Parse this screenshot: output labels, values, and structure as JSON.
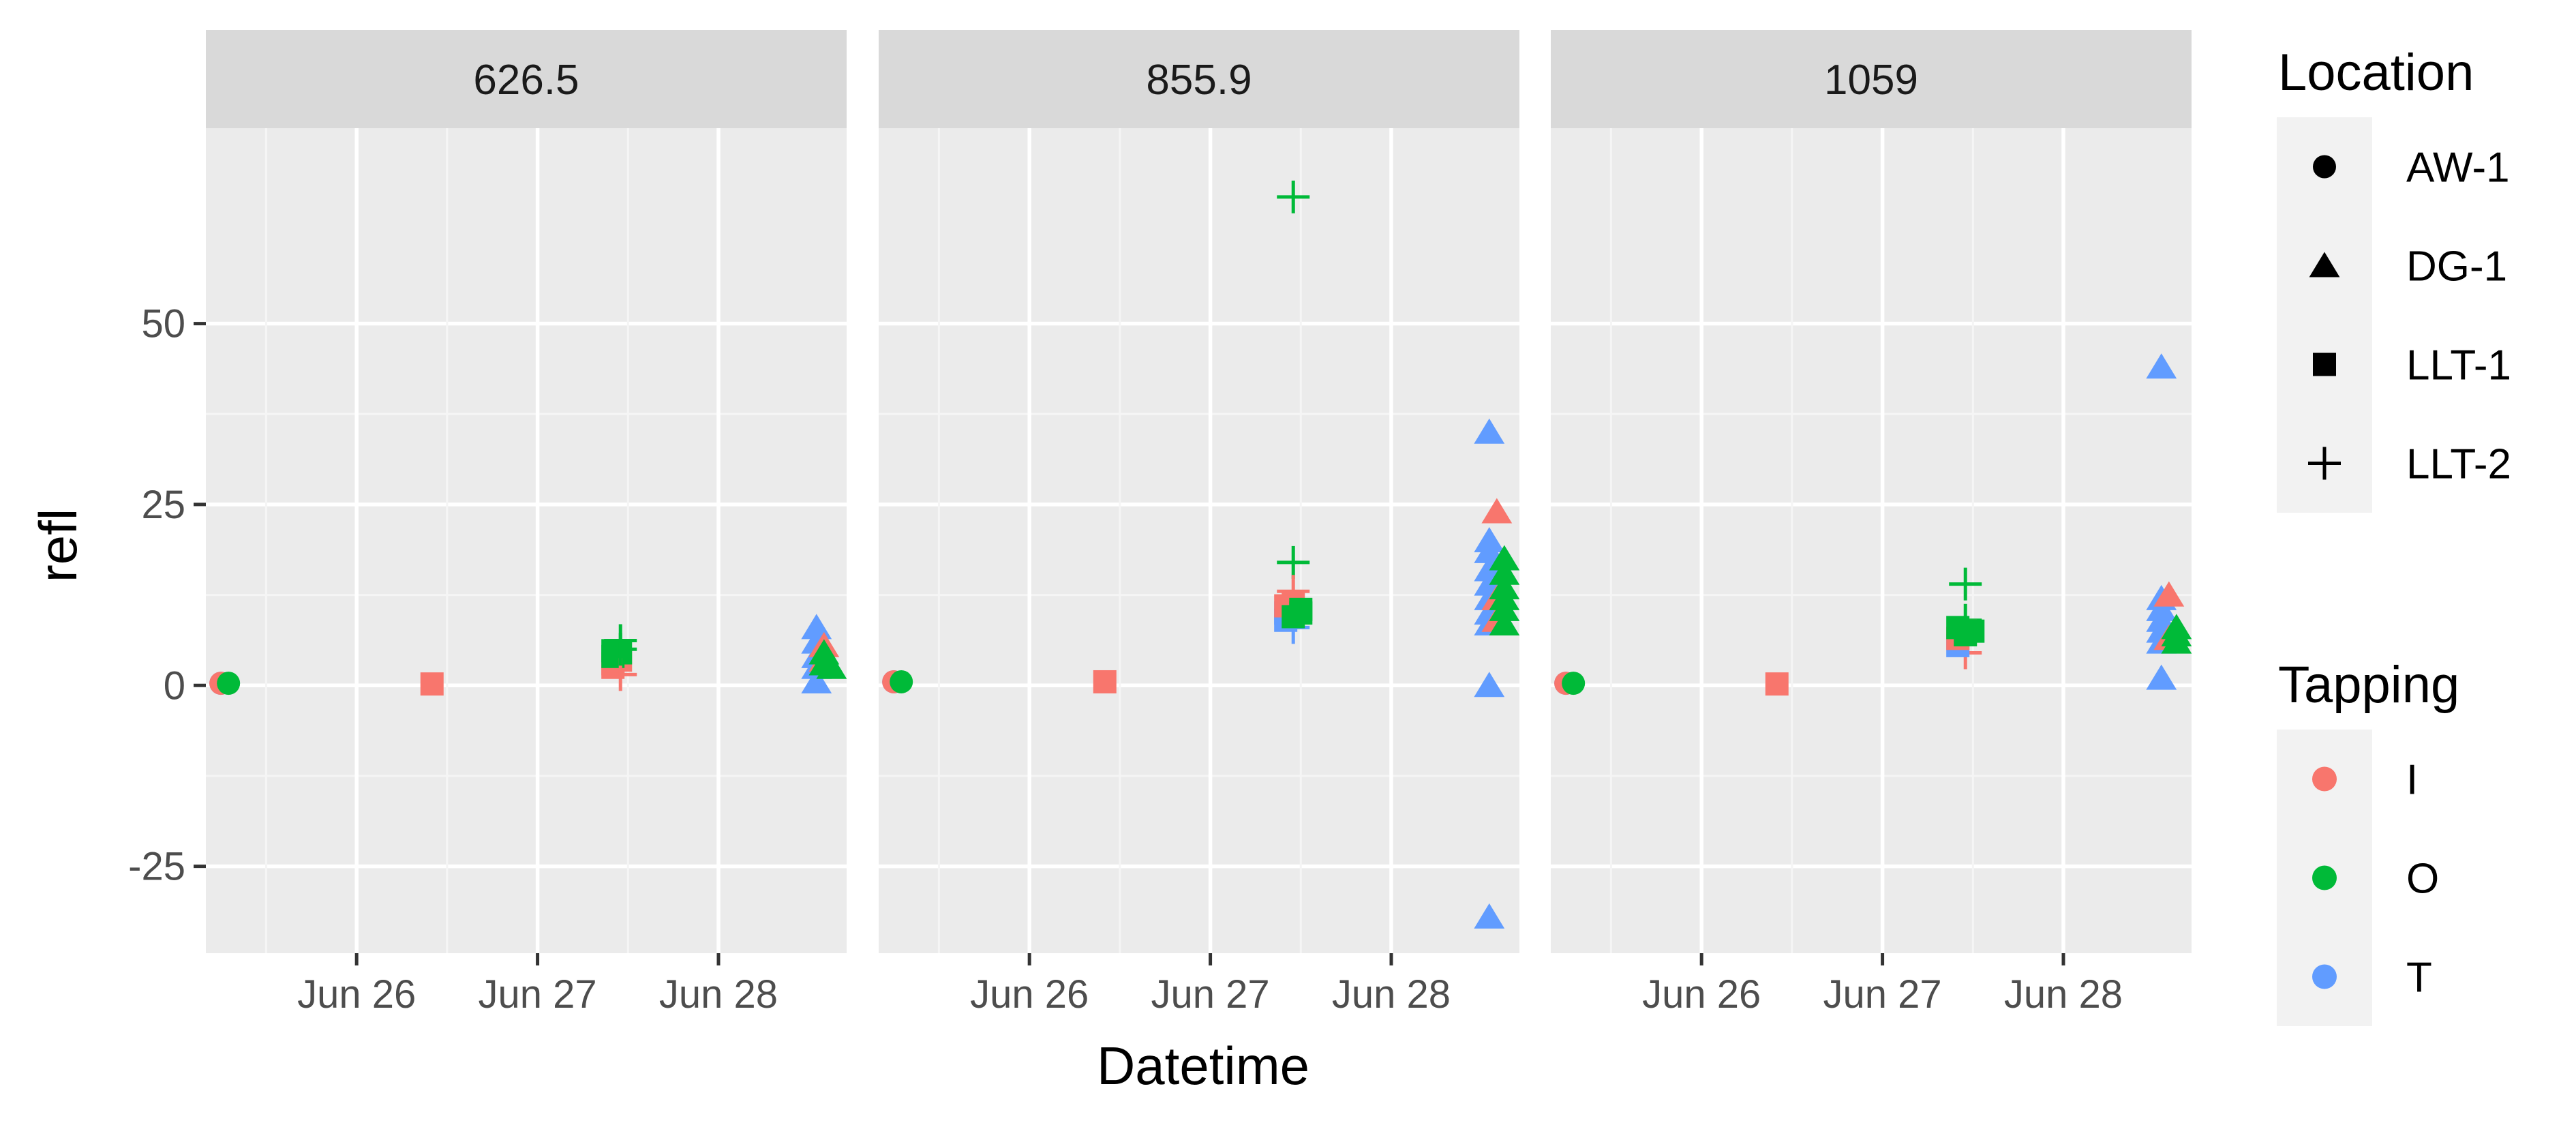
{
  "chart_data": {
    "type": "scatter",
    "facets": [
      "626.5",
      "855.9",
      "1059"
    ],
    "xlabel": "Datetime",
    "ylabel": "refl",
    "x_ticks": [
      "Jun 26",
      "Jun 27",
      "Jun 28"
    ],
    "x_range": [
      "2023-06-25T04:00",
      "2023-06-28T17:00"
    ],
    "y_ticks": [
      -25,
      0,
      25,
      50
    ],
    "ylim": [
      -37,
      77
    ],
    "grid": true,
    "legend_position": "right",
    "legends": {
      "shape": {
        "title": "Location",
        "items": [
          {
            "label": "AW-1",
            "shape": "circle"
          },
          {
            "label": "DG-1",
            "shape": "triangle"
          },
          {
            "label": "LLT-1",
            "shape": "square"
          },
          {
            "label": "LLT-2",
            "shape": "plus"
          }
        ]
      },
      "color": {
        "title": "Tapping",
        "items": [
          {
            "label": "I",
            "color": "#F8766D"
          },
          {
            "label": "O",
            "color": "#00BA38"
          },
          {
            "label": "T",
            "color": "#619CFF"
          }
        ]
      }
    },
    "panels": [
      {
        "facet": "626.5",
        "points": [
          {
            "x": "2023-06-25T06:00",
            "y": 0.3,
            "location": "AW-1",
            "tapping": "T"
          },
          {
            "x": "2023-06-25T06:00",
            "y": 0.3,
            "location": "AW-1",
            "tapping": "I"
          },
          {
            "x": "2023-06-25T07:00",
            "y": 0.3,
            "location": "AW-1",
            "tapping": "O"
          },
          {
            "x": "2023-06-26T10:00",
            "y": 0.2,
            "location": "LLT-1",
            "tapping": "I"
          },
          {
            "x": "2023-06-27T10:00",
            "y": 2.5,
            "location": "LLT-1",
            "tapping": "I"
          },
          {
            "x": "2023-06-27T10:00",
            "y": 3.0,
            "location": "LLT-1",
            "tapping": "I"
          },
          {
            "x": "2023-06-27T11:00",
            "y": 3.5,
            "location": "LLT-1",
            "tapping": "I"
          },
          {
            "x": "2023-06-27T10:00",
            "y": 4.0,
            "location": "LLT-1",
            "tapping": "O"
          },
          {
            "x": "2023-06-27T10:00",
            "y": 4.8,
            "location": "LLT-1",
            "tapping": "O"
          },
          {
            "x": "2023-06-27T11:00",
            "y": 4.5,
            "location": "LLT-1",
            "tapping": "O"
          },
          {
            "x": "2023-06-27T11:00",
            "y": 1.5,
            "location": "LLT-2",
            "tapping": "I"
          },
          {
            "x": "2023-06-27T11:00",
            "y": 5.0,
            "location": "LLT-2",
            "tapping": "O"
          },
          {
            "x": "2023-06-27T11:00",
            "y": 6.2,
            "location": "LLT-2",
            "tapping": "O"
          },
          {
            "x": "2023-06-28T13:00",
            "y": 8.0,
            "location": "DG-1",
            "tapping": "T"
          },
          {
            "x": "2023-06-28T13:00",
            "y": 6.0,
            "location": "DG-1",
            "tapping": "T"
          },
          {
            "x": "2023-06-28T13:00",
            "y": 4.0,
            "location": "DG-1",
            "tapping": "T"
          },
          {
            "x": "2023-06-28T13:00",
            "y": 2.5,
            "location": "DG-1",
            "tapping": "T"
          },
          {
            "x": "2023-06-28T13:00",
            "y": 0.5,
            "location": "DG-1",
            "tapping": "T"
          },
          {
            "x": "2023-06-28T14:00",
            "y": 5.5,
            "location": "DG-1",
            "tapping": "I"
          },
          {
            "x": "2023-06-28T14:00",
            "y": 3.5,
            "location": "DG-1",
            "tapping": "I"
          },
          {
            "x": "2023-06-28T14:00",
            "y": 4.5,
            "location": "DG-1",
            "tapping": "O"
          },
          {
            "x": "2023-06-28T14:00",
            "y": 3.0,
            "location": "DG-1",
            "tapping": "O"
          },
          {
            "x": "2023-06-28T15:00",
            "y": 2.5,
            "location": "DG-1",
            "tapping": "O"
          }
        ]
      },
      {
        "facet": "855.9",
        "points": [
          {
            "x": "2023-06-25T06:00",
            "y": 0.5,
            "location": "AW-1",
            "tapping": "T"
          },
          {
            "x": "2023-06-25T06:00",
            "y": 0.5,
            "location": "AW-1",
            "tapping": "I"
          },
          {
            "x": "2023-06-25T07:00",
            "y": 0.5,
            "location": "AW-1",
            "tapping": "O"
          },
          {
            "x": "2023-06-26T10:00",
            "y": 0.5,
            "location": "LLT-1",
            "tapping": "I"
          },
          {
            "x": "2023-06-27T11:00",
            "y": 67.5,
            "location": "LLT-2",
            "tapping": "O"
          },
          {
            "x": "2023-06-27T11:00",
            "y": 17.0,
            "location": "LLT-2",
            "tapping": "O"
          },
          {
            "x": "2023-06-27T11:00",
            "y": 13.0,
            "location": "LLT-2",
            "tapping": "I"
          },
          {
            "x": "2023-06-27T11:00",
            "y": 8.0,
            "location": "LLT-2",
            "tapping": "T"
          },
          {
            "x": "2023-06-27T10:00",
            "y": 9.0,
            "location": "LLT-1",
            "tapping": "T"
          },
          {
            "x": "2023-06-27T10:00",
            "y": 10.0,
            "location": "LLT-1",
            "tapping": "T"
          },
          {
            "x": "2023-06-27T10:00",
            "y": 11.0,
            "location": "LLT-1",
            "tapping": "I"
          },
          {
            "x": "2023-06-27T11:00",
            "y": 11.5,
            "location": "LLT-1",
            "tapping": "I"
          },
          {
            "x": "2023-06-27T11:00",
            "y": 9.5,
            "location": "LLT-1",
            "tapping": "O"
          },
          {
            "x": "2023-06-27T12:00",
            "y": 10.0,
            "location": "LLT-1",
            "tapping": "O"
          },
          {
            "x": "2023-06-27T12:00",
            "y": 10.5,
            "location": "LLT-1",
            "tapping": "O"
          },
          {
            "x": "2023-06-28T13:00",
            "y": 35.0,
            "location": "DG-1",
            "tapping": "T"
          },
          {
            "x": "2023-06-28T13:00",
            "y": 20.0,
            "location": "DG-1",
            "tapping": "T"
          },
          {
            "x": "2023-06-28T13:00",
            "y": 18.5,
            "location": "DG-1",
            "tapping": "T"
          },
          {
            "x": "2023-06-28T13:00",
            "y": 16.0,
            "location": "DG-1",
            "tapping": "T"
          },
          {
            "x": "2023-06-28T13:00",
            "y": 14.0,
            "location": "DG-1",
            "tapping": "T"
          },
          {
            "x": "2023-06-28T13:00",
            "y": 12.0,
            "location": "DG-1",
            "tapping": "T"
          },
          {
            "x": "2023-06-28T13:00",
            "y": 10.0,
            "location": "DG-1",
            "tapping": "T"
          },
          {
            "x": "2023-06-28T13:00",
            "y": 8.5,
            "location": "DG-1",
            "tapping": "T"
          },
          {
            "x": "2023-06-28T13:00",
            "y": 0.0,
            "location": "DG-1",
            "tapping": "T"
          },
          {
            "x": "2023-06-28T13:00",
            "y": -32.0,
            "location": "DG-1",
            "tapping": "T"
          },
          {
            "x": "2023-06-28T14:00",
            "y": 24.0,
            "location": "DG-1",
            "tapping": "I"
          },
          {
            "x": "2023-06-28T14:00",
            "y": 12.0,
            "location": "DG-1",
            "tapping": "I"
          },
          {
            "x": "2023-06-28T14:00",
            "y": 9.0,
            "location": "DG-1",
            "tapping": "I"
          },
          {
            "x": "2023-06-28T15:00",
            "y": 17.5,
            "location": "DG-1",
            "tapping": "O"
          },
          {
            "x": "2023-06-28T15:00",
            "y": 15.5,
            "location": "DG-1",
            "tapping": "O"
          },
          {
            "x": "2023-06-28T15:00",
            "y": 13.5,
            "location": "DG-1",
            "tapping": "O"
          },
          {
            "x": "2023-06-28T15:00",
            "y": 12.0,
            "location": "DG-1",
            "tapping": "O"
          },
          {
            "x": "2023-06-28T15:00",
            "y": 10.5,
            "location": "DG-1",
            "tapping": "O"
          },
          {
            "x": "2023-06-28T15:00",
            "y": 8.5,
            "location": "DG-1",
            "tapping": "O"
          }
        ]
      },
      {
        "facet": "1059",
        "points": [
          {
            "x": "2023-06-25T06:00",
            "y": 0.3,
            "location": "AW-1",
            "tapping": "T"
          },
          {
            "x": "2023-06-25T06:00",
            "y": 0.3,
            "location": "AW-1",
            "tapping": "I"
          },
          {
            "x": "2023-06-25T07:00",
            "y": 0.3,
            "location": "AW-1",
            "tapping": "O"
          },
          {
            "x": "2023-06-26T10:00",
            "y": 0.2,
            "location": "LLT-1",
            "tapping": "I"
          },
          {
            "x": "2023-06-27T11:00",
            "y": 14.0,
            "location": "LLT-2",
            "tapping": "O"
          },
          {
            "x": "2023-06-27T11:00",
            "y": 9.0,
            "location": "LLT-2",
            "tapping": "O"
          },
          {
            "x": "2023-06-27T11:00",
            "y": 4.5,
            "location": "LLT-2",
            "tapping": "I"
          },
          {
            "x": "2023-06-27T10:00",
            "y": 5.5,
            "location": "LLT-1",
            "tapping": "T"
          },
          {
            "x": "2023-06-27T10:00",
            "y": 6.5,
            "location": "LLT-1",
            "tapping": "I"
          },
          {
            "x": "2023-06-27T11:00",
            "y": 7.5,
            "location": "LLT-1",
            "tapping": "I"
          },
          {
            "x": "2023-06-27T10:00",
            "y": 8.0,
            "location": "LLT-1",
            "tapping": "O"
          },
          {
            "x": "2023-06-27T11:00",
            "y": 7.0,
            "location": "LLT-1",
            "tapping": "O"
          },
          {
            "x": "2023-06-27T12:00",
            "y": 7.5,
            "location": "LLT-1",
            "tapping": "O"
          },
          {
            "x": "2023-06-28T13:00",
            "y": 44.0,
            "location": "DG-1",
            "tapping": "T"
          },
          {
            "x": "2023-06-28T13:00",
            "y": 12.0,
            "location": "DG-1",
            "tapping": "T"
          },
          {
            "x": "2023-06-28T13:00",
            "y": 10.5,
            "location": "DG-1",
            "tapping": "T"
          },
          {
            "x": "2023-06-28T13:00",
            "y": 9.0,
            "location": "DG-1",
            "tapping": "T"
          },
          {
            "x": "2023-06-28T13:00",
            "y": 7.5,
            "location": "DG-1",
            "tapping": "T"
          },
          {
            "x": "2023-06-28T13:00",
            "y": 6.0,
            "location": "DG-1",
            "tapping": "T"
          },
          {
            "x": "2023-06-28T13:00",
            "y": 1.0,
            "location": "DG-1",
            "tapping": "T"
          },
          {
            "x": "2023-06-28T14:00",
            "y": 12.5,
            "location": "DG-1",
            "tapping": "I"
          },
          {
            "x": "2023-06-28T14:00",
            "y": 6.5,
            "location": "DG-1",
            "tapping": "I"
          },
          {
            "x": "2023-06-28T15:00",
            "y": 8.0,
            "location": "DG-1",
            "tapping": "O"
          },
          {
            "x": "2023-06-28T15:00",
            "y": 7.0,
            "location": "DG-1",
            "tapping": "O"
          },
          {
            "x": "2023-06-28T15:00",
            "y": 6.0,
            "location": "DG-1",
            "tapping": "O"
          }
        ]
      }
    ]
  }
}
